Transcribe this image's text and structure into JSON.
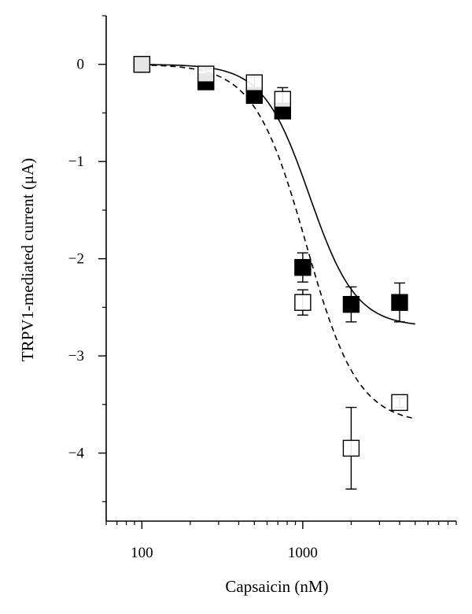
{
  "chart_data": {
    "type": "scatter",
    "title": "",
    "xlabel": "Capsaicin (nM)",
    "ylabel": "TRPV1-mediated current (μA)",
    "x_scale": "log",
    "xlim": [
      60,
      9000
    ],
    "ylim": [
      -4.7,
      0.5
    ],
    "x_tick_labels": [
      "100",
      "1000"
    ],
    "y_ticks": [
      0,
      -1,
      -2,
      -3,
      -4
    ],
    "y_tick_labels": [
      "0",
      "−1",
      "−2",
      "−3",
      "−4"
    ],
    "grid": false,
    "legend": "none",
    "series": [
      {
        "marker": "filled-square",
        "color": "#000000",
        "points": [
          {
            "x": 100,
            "y": 0.0,
            "err": 0.03
          },
          {
            "x": 250,
            "y": -0.18,
            "err": 0.05
          },
          {
            "x": 500,
            "y": -0.32,
            "err": 0.05
          },
          {
            "x": 750,
            "y": -0.48,
            "err": 0.06
          },
          {
            "x": 1000,
            "y": -2.09,
            "err": 0.15
          },
          {
            "x": 2000,
            "y": -2.47,
            "err": 0.18
          },
          {
            "x": 4000,
            "y": -2.45,
            "err": 0.2
          }
        ],
        "fit": {
          "style": "solid",
          "bottom": -2.7,
          "ec50": 1100,
          "hill": 3.0,
          "x_range": [
            100,
            5000
          ]
        }
      },
      {
        "marker": "open-square",
        "color": "#000000",
        "points": [
          {
            "x": 100,
            "y": 0.0,
            "err": 0.03
          },
          {
            "x": 250,
            "y": -0.1,
            "err": 0.05
          },
          {
            "x": 500,
            "y": -0.19,
            "err": 0.06
          },
          {
            "x": 750,
            "y": -0.36,
            "err": 0.12
          },
          {
            "x": 1000,
            "y": -2.45,
            "err": 0.13
          },
          {
            "x": 2000,
            "y": -3.95,
            "err": 0.42
          },
          {
            "x": 4000,
            "y": -3.48,
            "err": 0.05
          }
        ],
        "fit": {
          "style": "dashed",
          "bottom": -3.7,
          "ec50": 1050,
          "hill": 2.7,
          "x_range": [
            100,
            5000
          ]
        }
      }
    ]
  }
}
